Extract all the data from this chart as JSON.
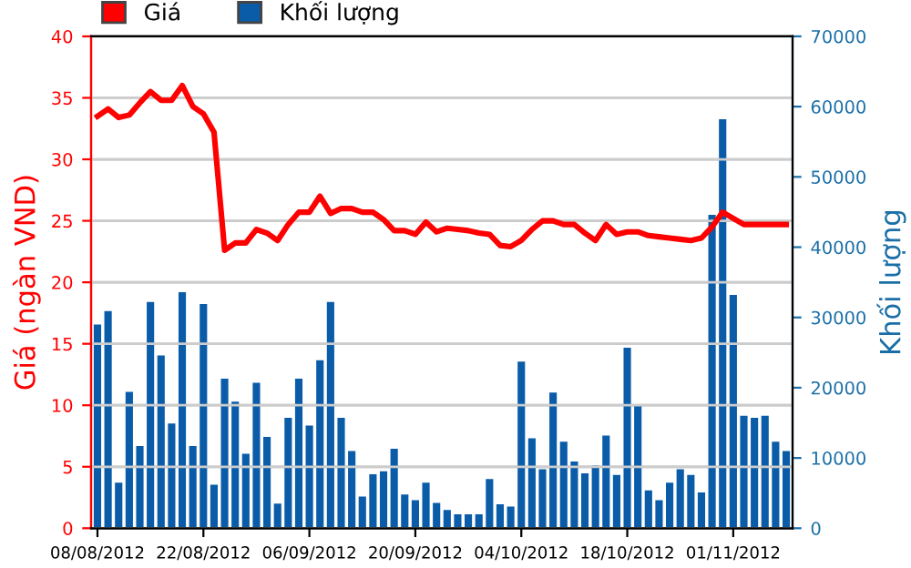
{
  "chart_data": {
    "type": "bar",
    "ylabel": "Giá (ngàn VND)",
    "y2label": "Khối lượng",
    "categories": [
      "08/08/2012",
      null,
      null,
      null,
      null,
      null,
      null,
      null,
      null,
      null,
      "22/08/2012",
      null,
      null,
      null,
      null,
      null,
      null,
      null,
      null,
      null,
      "06/09/2012",
      null,
      null,
      null,
      null,
      null,
      null,
      null,
      null,
      null,
      "20/09/2012",
      null,
      null,
      null,
      null,
      null,
      null,
      null,
      null,
      null,
      "04/10/2012",
      null,
      null,
      null,
      null,
      null,
      null,
      null,
      null,
      null,
      "18/10/2012",
      null,
      null,
      null,
      null,
      null,
      null,
      null,
      null,
      null,
      "01/11/2012",
      null,
      null,
      null,
      null,
      null
    ],
    "series": [
      {
        "name": "Giá",
        "type": "line",
        "color": "#ff0000",
        "values": [
          33.5,
          34.1,
          33.4,
          33.6,
          34.6,
          35.5,
          34.8,
          34.8,
          36.0,
          34.3,
          33.7,
          32.2,
          22.6,
          23.2,
          23.2,
          24.3,
          24.0,
          23.4,
          24.7,
          25.7,
          25.7,
          27.0,
          25.6,
          26.0,
          26.0,
          25.7,
          25.7,
          25.1,
          24.2,
          24.2,
          23.9,
          24.9,
          24.1,
          24.4,
          24.3,
          24.2,
          24.0,
          23.9,
          23.0,
          22.9,
          23.4,
          24.3,
          25.0,
          25.0,
          24.7,
          24.7,
          24.0,
          23.4,
          24.7,
          23.9,
          24.1,
          24.1,
          23.8,
          23.7,
          23.6,
          23.5,
          23.4,
          23.6,
          24.5,
          25.7,
          25.2,
          24.7,
          24.7,
          24.7,
          24.7,
          24.7
        ]
      },
      {
        "name": "Khối lượng",
        "axis": "y2",
        "color": "#0a5ca8",
        "values": [
          29000,
          30900,
          6500,
          19400,
          11700,
          32200,
          24600,
          14900,
          33600,
          11700,
          31900,
          6200,
          21300,
          18000,
          10600,
          20700,
          13000,
          3500,
          15700,
          21300,
          14600,
          23900,
          32200,
          15700,
          11000,
          4500,
          7700,
          8100,
          11300,
          4800,
          4000,
          6500,
          3600,
          2600,
          2000,
          2000,
          2000,
          7000,
          3400,
          3100,
          23700,
          12800,
          8400,
          19300,
          12300,
          9500,
          7800,
          8900,
          13200,
          7600,
          25700,
          17500,
          5400,
          4000,
          6500,
          8400,
          7600,
          5100,
          44600,
          58200,
          33200,
          16000,
          15700,
          16000,
          12300,
          11000
        ]
      }
    ],
    "ylim": [
      0,
      40
    ],
    "yticks": [
      0,
      5,
      10,
      15,
      20,
      25,
      30,
      35,
      40
    ],
    "y2lim": [
      0,
      70000
    ],
    "y2ticks": [
      0,
      10000,
      20000,
      30000,
      40000,
      50000,
      60000,
      70000
    ],
    "grid": "y",
    "legend": "top left"
  }
}
